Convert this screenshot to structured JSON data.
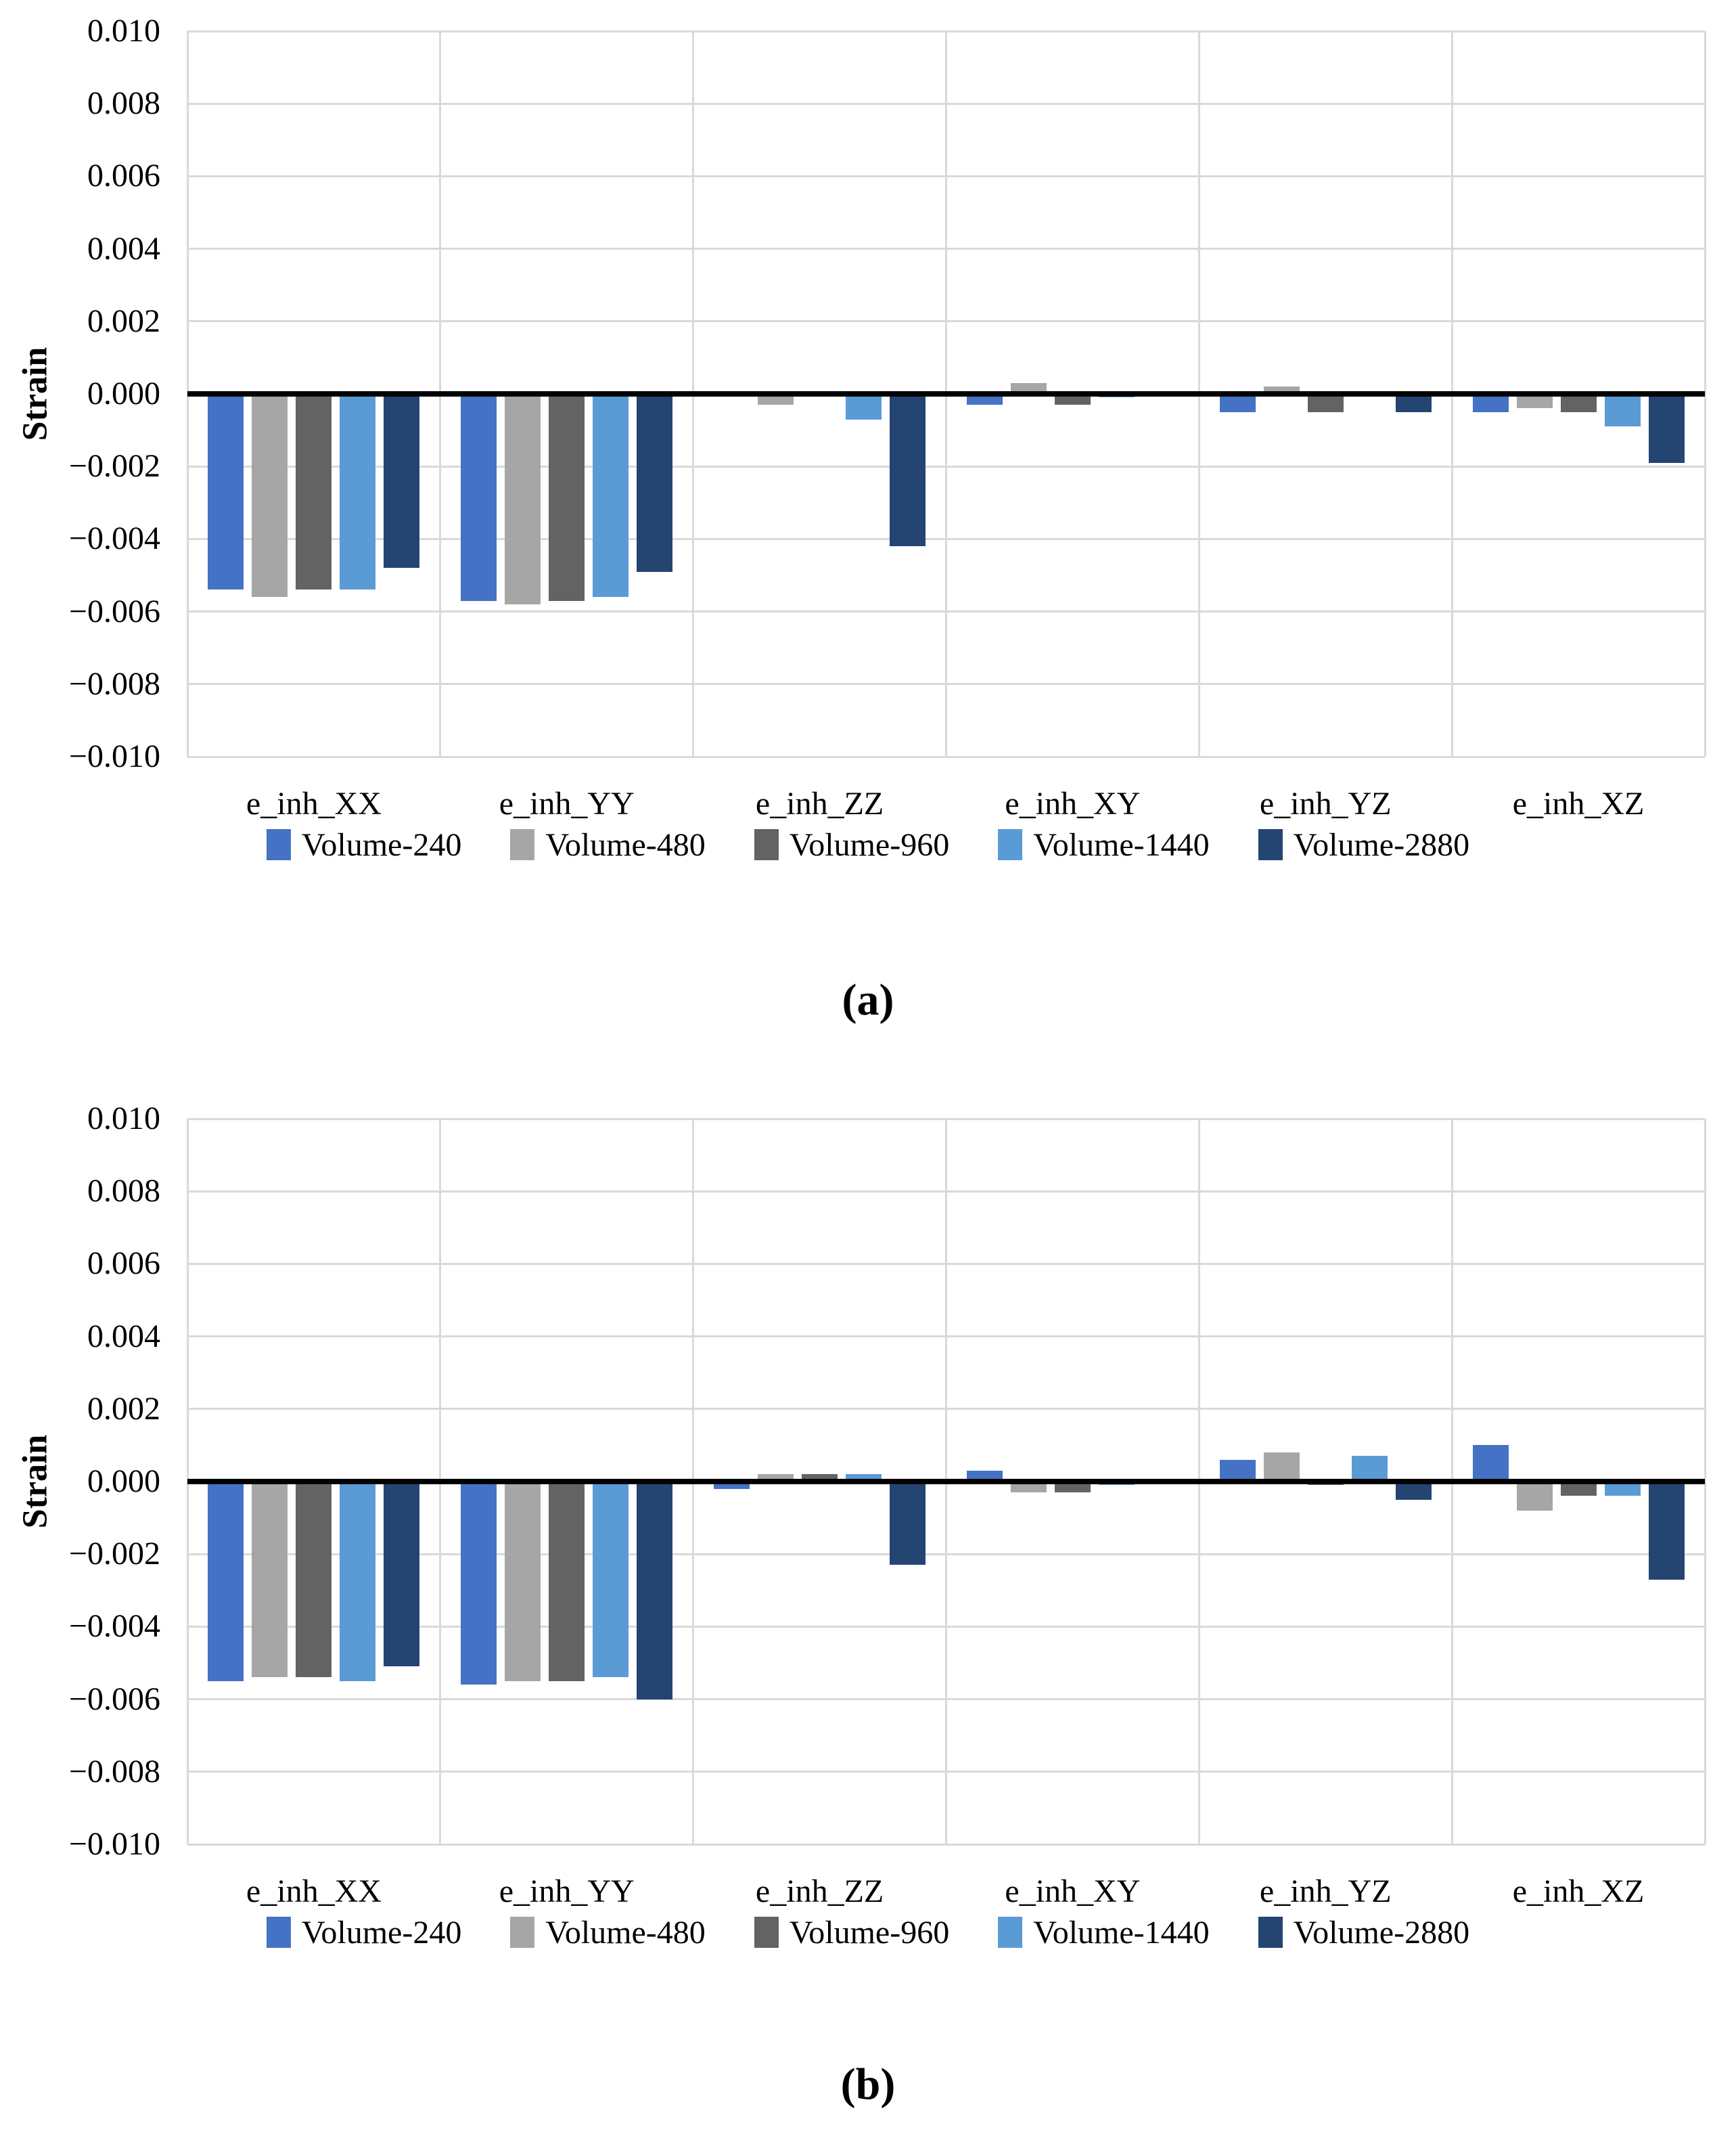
{
  "figure": {
    "background": "#ffffff",
    "captions": {
      "a": "(a)",
      "b": "(b)"
    }
  },
  "chart_data": [
    {
      "type": "bar",
      "panel": "a",
      "title": "",
      "xlabel": "",
      "ylabel": "Strain",
      "ylim": [
        -0.01,
        0.01
      ],
      "ytick_step": 0.002,
      "ytick_labels": [
        "0.010",
        "0.008",
        "0.006",
        "0.004",
        "0.002",
        "0.000",
        "−0.002",
        "−0.004",
        "−0.006",
        "−0.008",
        "−0.010"
      ],
      "grid": true,
      "legend_position": "bottom",
      "zero_axis_color": "#000000",
      "gridline_color": "#d9d9d9",
      "categories": [
        "e_inh_XX",
        "e_inh_YY",
        "e_inh_ZZ",
        "e_inh_XY",
        "e_inh_YZ",
        "e_inh_XZ"
      ],
      "series": [
        {
          "name": "Volume-240",
          "color": "#4472C4",
          "values": [
            -0.0054,
            -0.0057,
            0.0,
            -0.0003,
            -0.0005,
            -0.0005
          ]
        },
        {
          "name": "Volume-480",
          "color": "#A6A6A6",
          "values": [
            -0.0056,
            -0.0058,
            -0.0003,
            0.0003,
            0.0002,
            -0.0004
          ]
        },
        {
          "name": "Volume-960",
          "color": "#636363",
          "values": [
            -0.0054,
            -0.0057,
            0.0,
            -0.0003,
            -0.0005,
            -0.0005
          ]
        },
        {
          "name": "Volume-1440",
          "color": "#5B9BD5",
          "values": [
            -0.0054,
            -0.0056,
            -0.0007,
            -0.0001,
            0.0,
            -0.0009
          ]
        },
        {
          "name": "Volume-2880",
          "color": "#244472",
          "values": [
            -0.0048,
            -0.0049,
            -0.0042,
            0.0,
            -0.0005,
            -0.0019
          ]
        }
      ]
    },
    {
      "type": "bar",
      "panel": "b",
      "title": "",
      "xlabel": "",
      "ylabel": "Strain",
      "ylim": [
        -0.01,
        0.01
      ],
      "ytick_step": 0.002,
      "ytick_labels": [
        "0.010",
        "0.008",
        "0.006",
        "0.004",
        "0.002",
        "0.000",
        "−0.002",
        "−0.004",
        "−0.006",
        "−0.008",
        "−0.010"
      ],
      "grid": true,
      "legend_position": "bottom",
      "zero_axis_color": "#000000",
      "gridline_color": "#d9d9d9",
      "categories": [
        "e_inh_XX",
        "e_inh_YY",
        "e_inh_ZZ",
        "e_inh_XY",
        "e_inh_YZ",
        "e_inh_XZ"
      ],
      "series": [
        {
          "name": "Volume-240",
          "color": "#4472C4",
          "values": [
            -0.0055,
            -0.0056,
            -0.0002,
            0.0003,
            0.0006,
            0.001
          ]
        },
        {
          "name": "Volume-480",
          "color": "#A6A6A6",
          "values": [
            -0.0054,
            -0.0055,
            0.0002,
            -0.0003,
            0.0008,
            -0.0008
          ]
        },
        {
          "name": "Volume-960",
          "color": "#636363",
          "values": [
            -0.0054,
            -0.0055,
            0.0002,
            -0.0003,
            -0.0001,
            -0.0004
          ]
        },
        {
          "name": "Volume-1440",
          "color": "#5B9BD5",
          "values": [
            -0.0055,
            -0.0054,
            0.0002,
            -0.0001,
            0.0007,
            -0.0004
          ]
        },
        {
          "name": "Volume-2880",
          "color": "#244472",
          "values": [
            -0.0051,
            -0.006,
            -0.0023,
            0.0,
            -0.0005,
            -0.0027
          ]
        }
      ]
    }
  ]
}
